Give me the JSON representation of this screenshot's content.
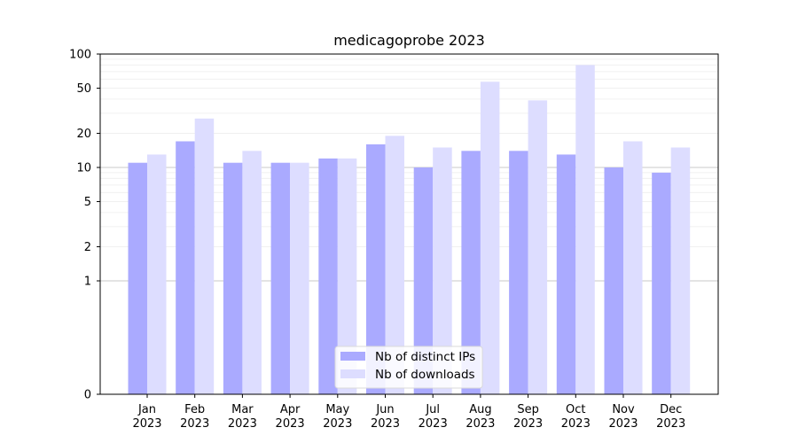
{
  "chart_data": {
    "type": "bar",
    "title": "medicagoprobe 2023",
    "xlabel": "",
    "ylabel": "",
    "scale": "symlog",
    "ylim": [
      0,
      100
    ],
    "yticks": [
      0,
      1,
      2,
      5,
      10,
      20,
      50,
      100
    ],
    "categories": [
      [
        "Jan",
        "2023"
      ],
      [
        "Feb",
        "2023"
      ],
      [
        "Mar",
        "2023"
      ],
      [
        "Apr",
        "2023"
      ],
      [
        "May",
        "2023"
      ],
      [
        "Jun",
        "2023"
      ],
      [
        "Jul",
        "2023"
      ],
      [
        "Aug",
        "2023"
      ],
      [
        "Sep",
        "2023"
      ],
      [
        "Oct",
        "2023"
      ],
      [
        "Nov",
        "2023"
      ],
      [
        "Dec",
        "2023"
      ]
    ],
    "series": [
      {
        "name": "Nb of distinct IPs",
        "color": "#aaaaff",
        "values": [
          11,
          17,
          11,
          11,
          12,
          16,
          10,
          14,
          14,
          13,
          10,
          9
        ]
      },
      {
        "name": "Nb of downloads",
        "color": "#ddddff",
        "values": [
          13,
          27,
          14,
          11,
          12,
          19,
          15,
          57,
          39,
          80,
          17,
          15
        ]
      }
    ],
    "grid": true,
    "legend": "bottom-center"
  }
}
